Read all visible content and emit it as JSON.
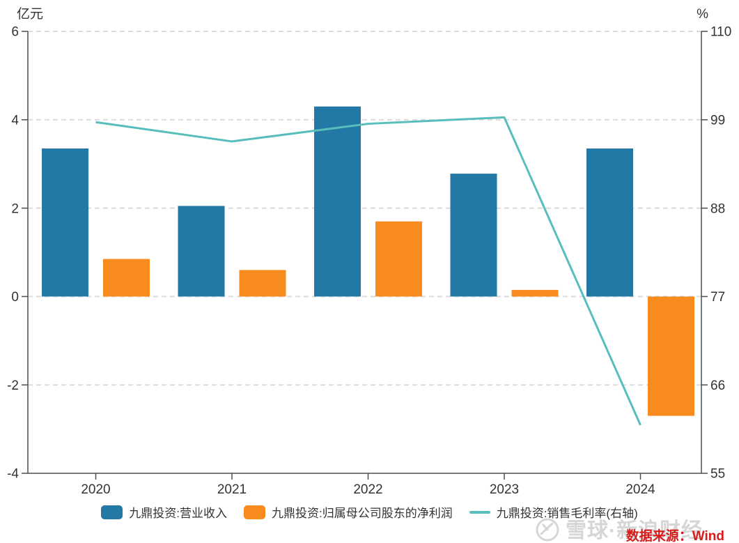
{
  "chart_data": {
    "type": "bar+line combo",
    "categories": [
      "2020",
      "2021",
      "2022",
      "2023",
      "2024"
    ],
    "series": [
      {
        "key": "revenue",
        "name": "九鼎投资:营业收入",
        "type": "bar",
        "axis": "left",
        "color": "#2378A5",
        "values": [
          3.35,
          2.05,
          4.3,
          2.78,
          3.35
        ]
      },
      {
        "key": "net-profit",
        "name": "九鼎投资:归属母公司股东的净利润",
        "type": "bar",
        "axis": "left",
        "color": "#F78B1D",
        "values": [
          0.85,
          0.6,
          1.7,
          0.15,
          -2.7
        ]
      },
      {
        "key": "gross-margin",
        "name": "九鼎投资:销售毛利率(右轴)",
        "type": "line",
        "axis": "right",
        "color": "#58BEBC",
        "values": [
          98.7,
          96.3,
          98.5,
          99.3,
          61.0
        ]
      }
    ],
    "left_axis": {
      "title": "亿元",
      "min": -4,
      "max": 6,
      "ticks": [
        6,
        4,
        2,
        0,
        -2,
        -4
      ]
    },
    "right_axis": {
      "title": "%",
      "min": 55,
      "max": 110,
      "ticks": [
        110,
        99,
        88,
        77,
        66,
        55
      ]
    },
    "grid": "dashed horizontal gridlines at every tick",
    "legend_position": "bottom center",
    "colors": {
      "grid": "#dbdbdb",
      "axis_line": "#4d4d4d",
      "tick_text": "#333333"
    }
  },
  "watermark": {
    "text": "雪球·新浪财经",
    "logo": "xueqiu-logo"
  },
  "source": {
    "text": "数据来源：Wind",
    "color": "#D61B1B"
  }
}
